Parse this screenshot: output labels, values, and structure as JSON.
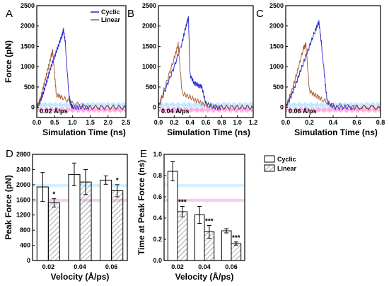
{
  "colors": {
    "cyclic": "#2222cc",
    "linear": "#a8552e",
    "cyclic_shadow": "#8fd3ff",
    "linear_shadow": "#ff66cc",
    "bar_fill": "#ffffff",
    "axis": "#000000"
  },
  "chart_data": [
    {
      "panel": "A",
      "type": "line",
      "xlabel": "Simulation Time (ns)",
      "ylabel": "Force (pN)",
      "xlim": [
        0,
        2.5
      ],
      "ylim": [
        -250,
        2500
      ],
      "xticks": [
        "0.0",
        "0.5",
        "1.0",
        "1.5",
        "2.0",
        "2.5"
      ],
      "yticks": [
        "0",
        "500",
        "1000",
        "1500",
        "2000",
        "2500"
      ],
      "annotation": "0.02 Å/ps",
      "legend": {
        "position": "top-right",
        "entries": [
          "Cyclic",
          "Linear"
        ]
      },
      "series": [
        {
          "name": "Cyclic",
          "x": [
            0,
            0.1,
            0.2,
            0.3,
            0.4,
            0.5,
            0.6,
            0.7,
            0.75,
            0.8,
            0.9,
            0.95,
            1.0,
            1.2,
            1.5,
            2.0,
            2.5
          ],
          "y": [
            0,
            150,
            400,
            700,
            1000,
            1250,
            1500,
            1750,
            1900,
            1600,
            300,
            100,
            0,
            0,
            0,
            0,
            0
          ]
        },
        {
          "name": "Linear",
          "x": [
            0,
            0.1,
            0.2,
            0.3,
            0.4,
            0.45,
            0.5,
            0.55,
            0.7,
            1.0,
            1.5,
            2.0,
            2.5
          ],
          "y": [
            0,
            200,
            550,
            900,
            1250,
            1380,
            800,
            300,
            250,
            100,
            0,
            0,
            0
          ]
        }
      ]
    },
    {
      "panel": "B",
      "type": "line",
      "xlabel": "Simulation Time (ns)",
      "ylabel": "",
      "xlim": [
        0,
        1.2
      ],
      "ylim": [
        -250,
        2500
      ],
      "xticks": [
        "0.0",
        "0.2",
        "0.4",
        "0.6",
        "0.8",
        "1.0",
        "1.2"
      ],
      "yticks": [
        "0",
        "500",
        "1000",
        "1500",
        "2000",
        "2500"
      ],
      "annotation": "0.04 Å/ps",
      "series": [
        {
          "name": "Cyclic",
          "x": [
            0,
            0.1,
            0.2,
            0.3,
            0.35,
            0.38,
            0.4,
            0.45,
            0.5,
            0.55,
            0.6,
            0.7,
            0.8,
            1.0,
            1.2
          ],
          "y": [
            0,
            500,
            1000,
            1600,
            2000,
            2200,
            800,
            600,
            550,
            500,
            100,
            0,
            0,
            0,
            0
          ]
        },
        {
          "name": "Linear",
          "x": [
            0,
            0.1,
            0.2,
            0.25,
            0.3,
            0.4,
            0.5,
            0.6,
            0.8,
            1.0,
            1.2
          ],
          "y": [
            0,
            600,
            1200,
            1550,
            350,
            250,
            150,
            50,
            0,
            0,
            0
          ]
        }
      ]
    },
    {
      "panel": "C",
      "type": "line",
      "xlabel": "Simulation Time (ns)",
      "ylabel": "",
      "xlim": [
        0,
        0.8
      ],
      "ylim": [
        -250,
        2500
      ],
      "xticks": [
        "0.0",
        "0.2",
        "0.4",
        "0.6",
        "0.8"
      ],
      "yticks": [
        "0",
        "500",
        "1000",
        "1500",
        "2000",
        "2500"
      ],
      "annotation": "0.06 Å/ps",
      "series": [
        {
          "name": "Cyclic",
          "x": [
            0,
            0.05,
            0.1,
            0.15,
            0.2,
            0.25,
            0.28,
            0.3,
            0.33,
            0.35,
            0.4,
            0.5,
            0.6,
            0.8
          ],
          "y": [
            0,
            300,
            700,
            1100,
            1500,
            1900,
            2100,
            1600,
            700,
            150,
            0,
            0,
            0,
            0
          ]
        },
        {
          "name": "Linear",
          "x": [
            0,
            0.05,
            0.1,
            0.15,
            0.17,
            0.2,
            0.25,
            0.3,
            0.4,
            0.6,
            0.8
          ],
          "y": [
            0,
            400,
            900,
            1450,
            1550,
            400,
            300,
            200,
            50,
            0,
            0
          ]
        }
      ]
    },
    {
      "panel": "D",
      "type": "bar",
      "xlabel": "Velocity (Å/ps)",
      "ylabel": "Peak Force (pN)",
      "ylim": [
        0,
        2800
      ],
      "categories": [
        "0.02",
        "0.04",
        "0.06"
      ],
      "yticks": [
        "0",
        "400",
        "800",
        "1200",
        "1600",
        "2000",
        "2400",
        "2800"
      ],
      "series": [
        {
          "name": "Cyclic",
          "values": [
            1940,
            2270,
            2120
          ],
          "errors": [
            380,
            300,
            110
          ]
        },
        {
          "name": "Linear",
          "values": [
            1520,
            2070,
            1840
          ],
          "errors": [
            110,
            330,
            160
          ]
        }
      ],
      "significance": [
        "*",
        "",
        "*"
      ]
    },
    {
      "panel": "E",
      "type": "bar",
      "xlabel": "Velocity (Å/ps)",
      "ylabel": "Time at Peak Force (ns)",
      "ylim": [
        0,
        1.0
      ],
      "categories": [
        "0.02",
        "0.04",
        "0.06"
      ],
      "yticks": [
        "0.0",
        "0.2",
        "0.4",
        "0.6",
        "0.8",
        "1.0"
      ],
      "legend": {
        "position": "top-right",
        "entries": [
          "Cyclic",
          "Linear"
        ]
      },
      "series": [
        {
          "name": "Cyclic",
          "values": [
            0.84,
            0.43,
            0.28
          ],
          "errors": [
            0.09,
            0.08,
            0.02
          ]
        },
        {
          "name": "Linear",
          "values": [
            0.46,
            0.27,
            0.16
          ],
          "errors": [
            0.05,
            0.06,
            0.015
          ]
        }
      ],
      "significance": [
        "***",
        "***",
        "***"
      ]
    }
  ]
}
